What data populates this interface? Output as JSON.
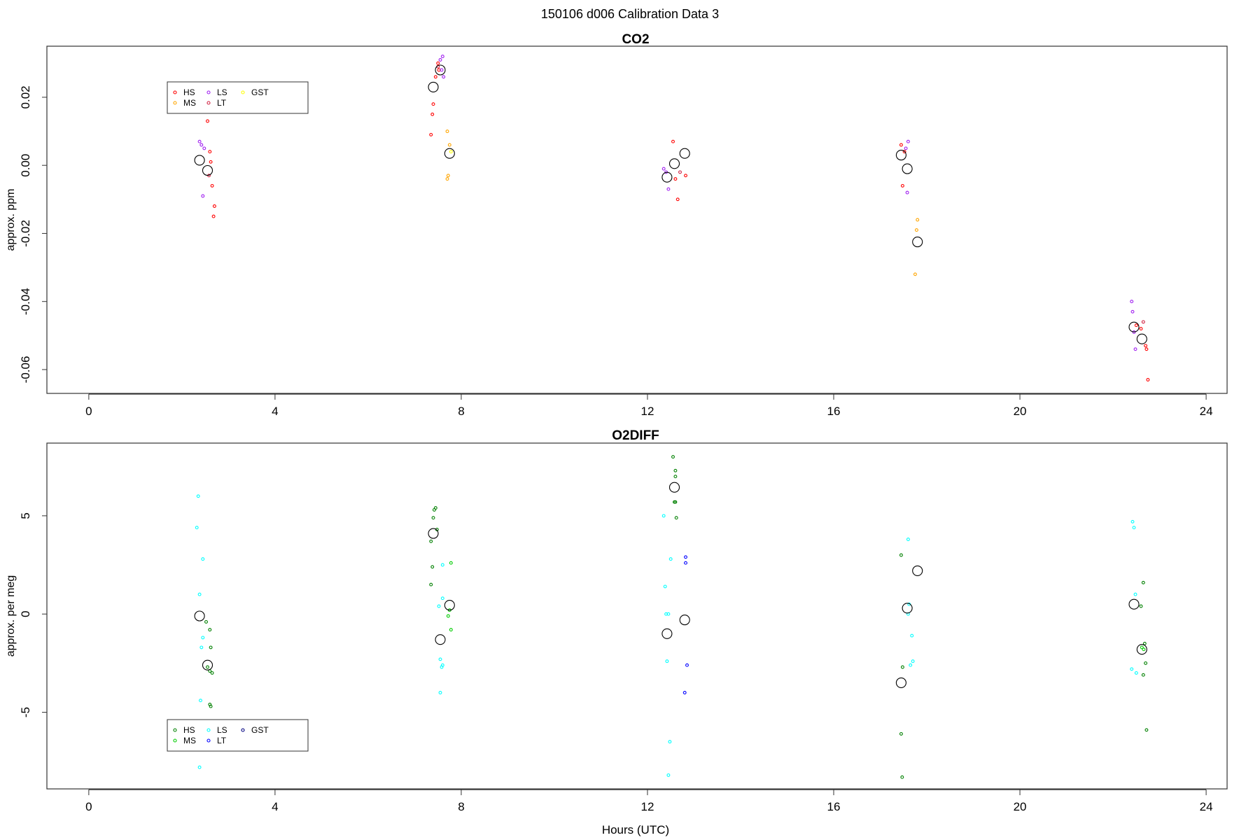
{
  "page": {
    "title": "150106   d006   Calibration Data 3"
  },
  "chart_data": [
    {
      "type": "scatter",
      "title": "CO2",
      "ylabel": "approx. ppm",
      "xlabel": "",
      "xlim": [
        -0.9,
        24.45
      ],
      "ylim": [
        -0.067,
        0.035
      ],
      "xticks": [
        0,
        4,
        8,
        12,
        16,
        20,
        24
      ],
      "yticks": [
        -0.06,
        -0.04,
        -0.02,
        0.0,
        0.02
      ],
      "ytick_labels": [
        "-0.06",
        "-0.04",
        "-0.02",
        "0.00",
        "0.02"
      ],
      "legend": {
        "placement": "top-left",
        "entries": [
          {
            "name": "HS",
            "color": "#ff0000"
          },
          {
            "name": "MS",
            "color": "#ffa500"
          },
          {
            "name": "LS",
            "color": "#a020f0"
          },
          {
            "name": "LT",
            "color": "#d02040"
          },
          {
            "name": "GST",
            "color": "#ffff00"
          }
        ]
      },
      "series": [
        {
          "name": "HS",
          "color": "#ff0000",
          "points": [
            [
              2.55,
              0.013
            ],
            [
              2.6,
              0.004
            ],
            [
              2.65,
              -0.006
            ],
            [
              2.7,
              -0.012
            ],
            [
              2.68,
              -0.015
            ],
            [
              2.62,
              0.001
            ],
            [
              7.35,
              0.009
            ],
            [
              7.38,
              0.015
            ],
            [
              7.4,
              0.018
            ],
            [
              7.45,
              0.026
            ],
            [
              7.5,
              0.03
            ],
            [
              7.52,
              0.028
            ],
            [
              12.55,
              0.007
            ],
            [
              12.6,
              -0.004
            ],
            [
              12.65,
              -0.01
            ],
            [
              12.82,
              -0.003
            ],
            [
              17.45,
              0.006
            ],
            [
              17.48,
              -0.006
            ],
            [
              17.52,
              0.004
            ],
            [
              22.5,
              -0.047
            ],
            [
              22.6,
              -0.048
            ],
            [
              22.7,
              -0.053
            ],
            [
              22.72,
              -0.054
            ],
            [
              22.75,
              -0.063
            ]
          ]
        },
        {
          "name": "MS",
          "color": "#ffa500",
          "points": [
            [
              7.7,
              0.01
            ],
            [
              7.75,
              0.006
            ],
            [
              7.72,
              -0.003
            ],
            [
              7.7,
              -0.004
            ],
            [
              17.8,
              -0.016
            ],
            [
              17.78,
              -0.019
            ],
            [
              17.75,
              -0.032
            ]
          ]
        },
        {
          "name": "LS",
          "color": "#a020f0",
          "points": [
            [
              2.38,
              0.007
            ],
            [
              2.42,
              0.006
            ],
            [
              2.48,
              0.005
            ],
            [
              2.45,
              -0.009
            ],
            [
              7.55,
              0.031
            ],
            [
              7.6,
              0.032
            ],
            [
              7.58,
              0.028
            ],
            [
              7.62,
              0.026
            ],
            [
              12.35,
              -0.001
            ],
            [
              12.4,
              -0.002
            ],
            [
              12.45,
              -0.007
            ],
            [
              17.55,
              0.005
            ],
            [
              17.6,
              0.007
            ],
            [
              17.58,
              -0.008
            ],
            [
              22.4,
              -0.04
            ],
            [
              22.42,
              -0.043
            ],
            [
              22.45,
              -0.049
            ],
            [
              22.48,
              -0.054
            ]
          ]
        },
        {
          "name": "LT",
          "color": "#d02040",
          "points": [
            [
              2.58,
              -0.003
            ],
            [
              7.5,
              0.029
            ],
            [
              12.7,
              -0.002
            ],
            [
              22.65,
              -0.046
            ]
          ]
        },
        {
          "name": "GST",
          "color": "#ffff00",
          "points": [
            [
              7.78,
              0.004
            ]
          ]
        },
        {
          "name": "mean",
          "color": "#000000",
          "large": true,
          "points": [
            [
              2.38,
              0.0015
            ],
            [
              2.55,
              -0.0015
            ],
            [
              7.4,
              0.023
            ],
            [
              7.55,
              0.028
            ],
            [
              7.75,
              0.0035
            ],
            [
              12.42,
              -0.0035
            ],
            [
              12.58,
              0.0005
            ],
            [
              12.8,
              0.0035
            ],
            [
              17.45,
              0.003
            ],
            [
              17.58,
              -0.001
            ],
            [
              17.8,
              -0.0225
            ],
            [
              22.45,
              -0.0475
            ],
            [
              22.62,
              -0.051
            ]
          ]
        }
      ]
    },
    {
      "type": "scatter",
      "title": "O2DIFF",
      "ylabel": "approx. per meg",
      "xlabel": "Hours (UTC)",
      "xlim": [
        -0.9,
        24.45
      ],
      "ylim": [
        -8.9,
        8.7
      ],
      "xticks": [
        0,
        4,
        8,
        12,
        16,
        20,
        24
      ],
      "yticks": [
        -5,
        0,
        5
      ],
      "ytick_labels": [
        "-5",
        "0",
        "5"
      ],
      "legend": {
        "placement": "bottom-left",
        "entries": [
          {
            "name": "HS",
            "color": "#008000"
          },
          {
            "name": "MS",
            "color": "#00cc00"
          },
          {
            "name": "LS",
            "color": "#00ffff"
          },
          {
            "name": "LT",
            "color": "#0000ff"
          },
          {
            "name": "GST",
            "color": "#000080"
          }
        ]
      },
      "series": [
        {
          "name": "HS",
          "color": "#008000",
          "points": [
            [
              2.52,
              -0.4
            ],
            [
              2.6,
              -0.8
            ],
            [
              2.62,
              -1.7
            ],
            [
              2.55,
              -2.7
            ],
            [
              2.6,
              -2.9
            ],
            [
              2.65,
              -3.0
            ],
            [
              2.6,
              -4.6
            ],
            [
              2.62,
              -4.7
            ],
            [
              7.35,
              3.7
            ],
            [
              7.38,
              2.4
            ],
            [
              7.35,
              1.5
            ],
            [
              7.4,
              4.9
            ],
            [
              7.42,
              5.3
            ],
            [
              7.45,
              5.4
            ],
            [
              7.48,
              4.3
            ],
            [
              12.55,
              8.0
            ],
            [
              12.6,
              7.3
            ],
            [
              12.6,
              7.0
            ],
            [
              12.58,
              5.7
            ],
            [
              12.6,
              5.7
            ],
            [
              12.62,
              4.9
            ],
            [
              17.45,
              3.0
            ],
            [
              17.48,
              -2.7
            ],
            [
              17.45,
              -6.1
            ],
            [
              17.47,
              -8.3
            ],
            [
              22.65,
              1.6
            ],
            [
              22.6,
              0.4
            ],
            [
              22.68,
              -1.5
            ],
            [
              22.7,
              -2.5
            ],
            [
              22.65,
              -3.1
            ],
            [
              22.72,
              -5.9
            ]
          ]
        },
        {
          "name": "MS",
          "color": "#00cc00",
          "points": [
            [
              7.78,
              2.6
            ],
            [
              7.75,
              0.2
            ],
            [
              7.72,
              -0.1
            ],
            [
              7.78,
              -0.8
            ],
            [
              22.62,
              -1.7
            ],
            [
              22.66,
              -1.8
            ]
          ]
        },
        {
          "name": "LS",
          "color": "#00ffff",
          "points": [
            [
              2.35,
              6.0
            ],
            [
              2.32,
              4.4
            ],
            [
              2.45,
              2.8
            ],
            [
              2.38,
              1.0
            ],
            [
              2.45,
              -1.2
            ],
            [
              2.42,
              -1.7
            ],
            [
              2.4,
              -4.4
            ],
            [
              2.38,
              -7.8
            ],
            [
              7.52,
              0.4
            ],
            [
              7.6,
              0.8
            ],
            [
              7.6,
              2.5
            ],
            [
              7.55,
              -2.3
            ],
            [
              7.58,
              -2.7
            ],
            [
              7.6,
              -2.6
            ],
            [
              7.55,
              -4.0
            ],
            [
              12.35,
              5.0
            ],
            [
              12.5,
              2.8
            ],
            [
              12.38,
              1.4
            ],
            [
              12.4,
              0.0
            ],
            [
              12.45,
              0.0
            ],
            [
              12.42,
              -2.4
            ],
            [
              12.48,
              -6.5
            ],
            [
              12.45,
              -8.2
            ],
            [
              17.6,
              3.8
            ],
            [
              17.62,
              0.5
            ],
            [
              17.6,
              0.0
            ],
            [
              17.68,
              -1.1
            ],
            [
              17.7,
              -2.4
            ],
            [
              17.65,
              -2.6
            ],
            [
              22.42,
              4.7
            ],
            [
              22.45,
              4.4
            ],
            [
              22.48,
              1.0
            ],
            [
              22.4,
              -2.8
            ],
            [
              22.5,
              -3.0
            ]
          ]
        },
        {
          "name": "LT",
          "color": "#0000ff",
          "points": [
            [
              12.82,
              2.9
            ],
            [
              12.82,
              2.6
            ],
            [
              12.85,
              -2.6
            ],
            [
              12.8,
              -4.0
            ]
          ]
        },
        {
          "name": "GST",
          "color": "#000080",
          "points": []
        },
        {
          "name": "mean",
          "color": "#000000",
          "large": true,
          "points": [
            [
              2.38,
              -0.1
            ],
            [
              2.55,
              -2.6
            ],
            [
              7.4,
              4.1
            ],
            [
              7.55,
              -1.3
            ],
            [
              7.75,
              0.45
            ],
            [
              12.42,
              -1.0
            ],
            [
              12.58,
              6.45
            ],
            [
              12.8,
              -0.3
            ],
            [
              17.45,
              -3.5
            ],
            [
              17.58,
              0.3
            ],
            [
              17.8,
              2.2
            ],
            [
              22.45,
              0.5
            ],
            [
              22.62,
              -1.8
            ]
          ]
        }
      ]
    }
  ]
}
